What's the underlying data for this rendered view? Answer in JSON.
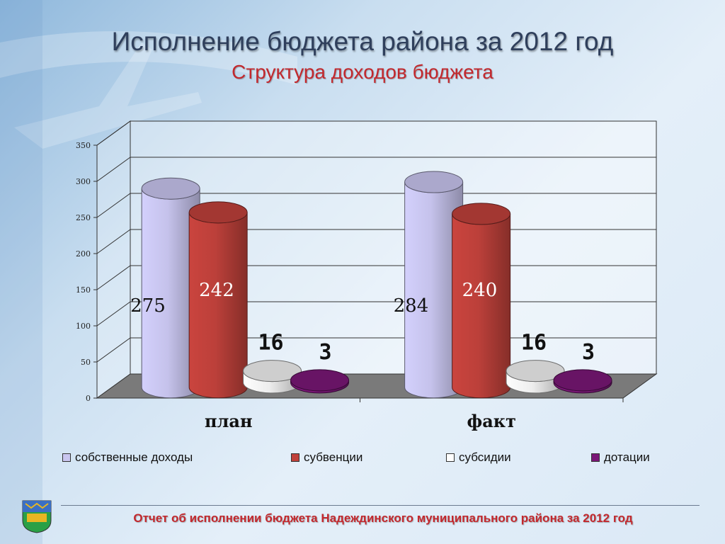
{
  "title": "Исполнение бюджета района за 2012 год",
  "subtitle": "Структура доходов бюджета",
  "footer": "Отчет об исполнении бюджета Надеждинского муниципального района за 2012 год",
  "chart_data": {
    "type": "bar",
    "categories": [
      "план",
      "факт"
    ],
    "series": [
      {
        "name": "собственные доходы",
        "values": [
          275,
          284
        ],
        "color": "#c9c6f0"
      },
      {
        "name": "субвенции",
        "values": [
          242,
          240
        ],
        "color": "#c0413b"
      },
      {
        "name": "субсидии",
        "values": [
          16,
          16
        ],
        "color": "#f2f2f2"
      },
      {
        "name": "дотации",
        "values": [
          3,
          3
        ],
        "color": "#7a1777"
      }
    ],
    "yticks": [
      "0",
      "50",
      "100",
      "150",
      "200",
      "250",
      "300",
      "350"
    ],
    "ylim": [
      0,
      350
    ],
    "grid": true,
    "legend_position": "bottom"
  }
}
